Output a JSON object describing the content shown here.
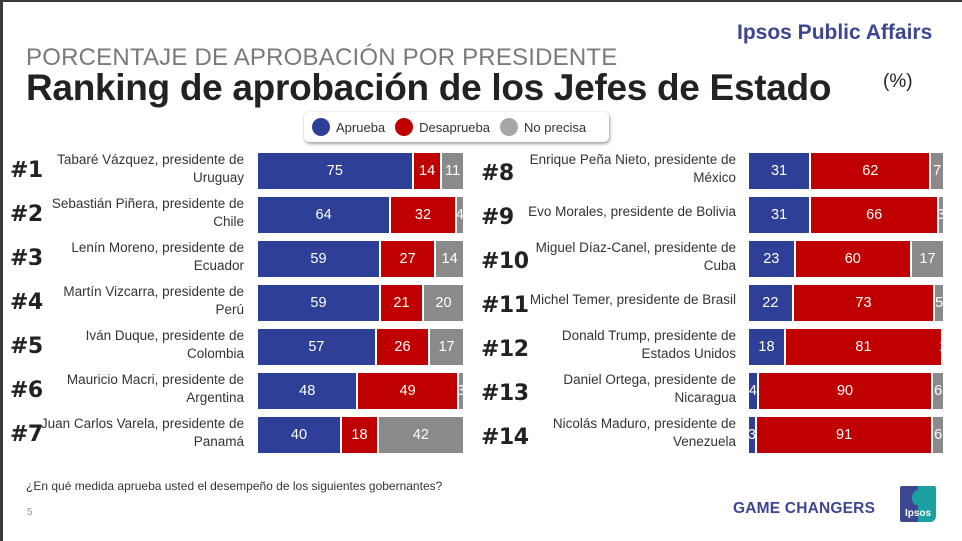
{
  "header": {
    "kicker": "PORCENTAJE DE APROBACIÓN POR PRESIDENTE",
    "title": "Ranking de aprobación de los Jefes de Estado",
    "unit": "(%)",
    "brand": "Ipsos Public Affairs"
  },
  "colors": {
    "aprueba": "#2e3f97",
    "desaprueba": "#c00000",
    "no_precisa": "#8a8a8a",
    "legend_no_precisa": "#a6a6a6",
    "brand": "#3d4691"
  },
  "footer": {
    "question": "¿En qué medida aprueba usted el desempeño de los siguientes gobernantes?",
    "page": "5",
    "tagline": "GAME CHANGERS",
    "logo_text": "Ipsos"
  },
  "chart_data": {
    "type": "bar",
    "orientation": "horizontal",
    "stacked": true,
    "normalized_to": 100,
    "title": "Ranking de aprobación de los Jefes de Estado",
    "subtitle": "PORCENTAJE DE APROBACIÓN POR PRESIDENTE",
    "unit": "%",
    "legend": {
      "placement": "top-center",
      "entries": [
        "Aprueba",
        "Desaprueba",
        "No precisa"
      ]
    },
    "series_names": [
      "Aprueba",
      "Desaprueba",
      "No precisa"
    ],
    "rows": [
      {
        "rank": "#1",
        "label": "Tabaré Vázquez, presidente de\nUruguay",
        "values": [
          75,
          14,
          11
        ]
      },
      {
        "rank": "#2",
        "label": "Sebastián Piñera, presidente de\nChile",
        "values": [
          64,
          32,
          4
        ]
      },
      {
        "rank": "#3",
        "label": "Lenín Moreno, presidente de\nEcuador",
        "values": [
          59,
          27,
          14
        ]
      },
      {
        "rank": "#4",
        "label": "Martín Vizcarra, presidente de\nPerú",
        "values": [
          59,
          21,
          20
        ]
      },
      {
        "rank": "#5",
        "label": "Iván Duque, presidente de\nColombia",
        "values": [
          57,
          26,
          17
        ]
      },
      {
        "rank": "#6",
        "label": "Mauricio Macri, presidente de\nArgentina",
        "values": [
          48,
          49,
          3
        ]
      },
      {
        "rank": "#7",
        "label": "Juan Carlos Varela, presidente de\nPanamá",
        "values": [
          40,
          18,
          42
        ]
      },
      {
        "rank": "#8",
        "label": "Enrique Peña Nieto, presidente de\nMéxico",
        "values": [
          31,
          62,
          7
        ]
      },
      {
        "rank": "#9",
        "label": "Evo Morales, presidente de Bolivia",
        "values": [
          31,
          66,
          3
        ]
      },
      {
        "rank": "#10",
        "label": "Miguel Díaz-Canel, presidente de\nCuba",
        "values": [
          23,
          60,
          17
        ]
      },
      {
        "rank": "#11",
        "label": "Michel Temer, presidente de Brasil",
        "values": [
          22,
          73,
          5
        ]
      },
      {
        "rank": "#12",
        "label": "Donald Trump, presidente de\nEstados Unidos",
        "values": [
          18,
          81,
          1
        ]
      },
      {
        "rank": "#13",
        "label": "Daniel Ortega, presidente de\nNicaragua",
        "values": [
          4,
          90,
          6
        ]
      },
      {
        "rank": "#14",
        "label": "Nicolás Maduro, presidente de\nVenezuela",
        "values": [
          3,
          91,
          6
        ]
      }
    ]
  }
}
